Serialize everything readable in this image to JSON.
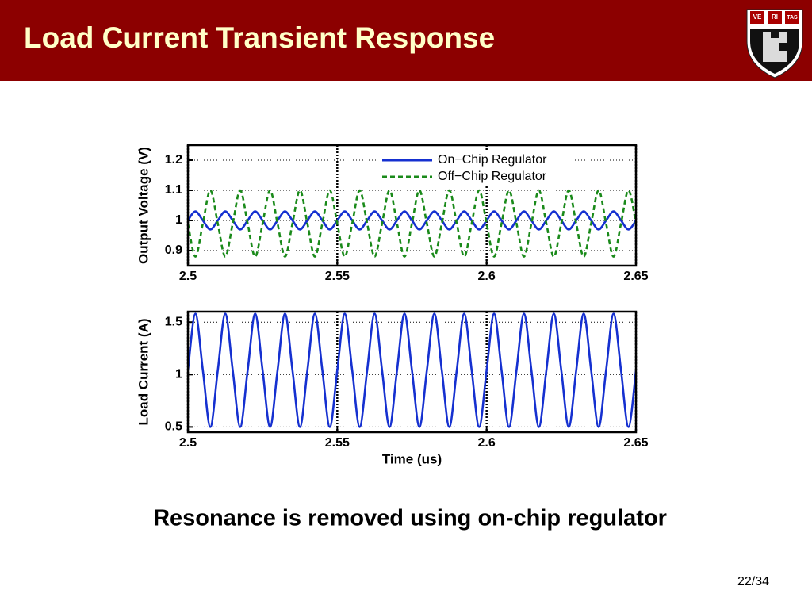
{
  "header": {
    "title": "Load Current Transient Response",
    "logo": [
      "VE",
      "RI",
      "TAS"
    ]
  },
  "chart_data": [
    {
      "type": "line",
      "x": [
        2.5,
        2.5025,
        2.505,
        2.5075,
        2.51,
        2.5125,
        2.515,
        2.5175,
        2.52,
        2.5225,
        2.525,
        2.5275,
        2.53,
        2.5325,
        2.535,
        2.5375,
        2.54,
        2.5425,
        2.545,
        2.5475,
        2.55,
        2.5525,
        2.555,
        2.5575,
        2.56,
        2.5625,
        2.565,
        2.5675,
        2.57,
        2.5725,
        2.575,
        2.5775,
        2.58,
        2.5825,
        2.585,
        2.5875,
        2.59,
        2.5925,
        2.595,
        2.5975,
        2.6,
        2.6025,
        2.605,
        2.6075,
        2.61,
        2.6125,
        2.615,
        2.6175,
        2.62,
        2.6225,
        2.625,
        2.6275,
        2.63,
        2.6325,
        2.635,
        2.6375,
        2.64,
        2.6425,
        2.645,
        2.6475,
        2.65
      ],
      "series": [
        {
          "name": "On−Chip Regulator",
          "color": "#1530d0",
          "linestyle": "solid",
          "values": [
            1,
            1.03,
            1,
            0.97,
            1,
            1.03,
            1,
            0.97,
            1,
            1.03,
            1,
            0.97,
            1,
            1.03,
            1,
            0.97,
            1,
            1.03,
            1,
            0.97,
            1,
            1.03,
            1,
            0.97,
            1,
            1.03,
            1,
            0.97,
            1,
            1.03,
            1,
            0.97,
            1,
            1.03,
            1,
            0.97,
            1,
            1.03,
            1,
            0.97,
            1,
            1.03,
            1,
            0.97,
            1,
            1.03,
            1,
            0.97,
            1,
            1.03,
            1,
            0.97,
            1,
            1.03,
            1,
            0.97,
            1,
            1.03,
            1,
            0.97,
            1
          ]
        },
        {
          "name": "Off−Chip Regulator",
          "color": "#1a8a1a",
          "linestyle": "dashed",
          "values": [
            0.99,
            0.88,
            0.99,
            1.1,
            0.99,
            0.88,
            0.99,
            1.1,
            0.99,
            0.88,
            0.99,
            1.1,
            0.99,
            0.88,
            0.99,
            1.1,
            0.99,
            0.88,
            0.99,
            1.1,
            0.99,
            0.88,
            0.99,
            1.1,
            0.99,
            0.88,
            0.99,
            1.1,
            0.99,
            0.88,
            0.99,
            1.1,
            0.99,
            0.88,
            0.99,
            1.1,
            0.99,
            0.88,
            0.99,
            1.1,
            0.99,
            0.88,
            0.99,
            1.1,
            0.99,
            0.88,
            0.99,
            1.1,
            0.99,
            0.88,
            0.99,
            1.1,
            0.99,
            0.88,
            0.99,
            1.1,
            0.99,
            0.88,
            0.99,
            1.1,
            0.99
          ]
        }
      ],
      "ylabel": "Output Voltage (V)",
      "xlim": [
        2.5,
        2.65
      ],
      "ylim": [
        0.85,
        1.25
      ],
      "xticks": [
        2.5,
        2.55,
        2.6,
        2.65
      ],
      "yticks": [
        0.9,
        1,
        1.1,
        1.2
      ],
      "grid": true,
      "legend": "upper right"
    },
    {
      "type": "line",
      "x": [
        2.5,
        2.5025,
        2.505,
        2.5075,
        2.51,
        2.5125,
        2.515,
        2.5175,
        2.52,
        2.5225,
        2.525,
        2.5275,
        2.53,
        2.5325,
        2.535,
        2.5375,
        2.54,
        2.5425,
        2.545,
        2.5475,
        2.55,
        2.5525,
        2.555,
        2.5575,
        2.56,
        2.5625,
        2.565,
        2.5675,
        2.57,
        2.5725,
        2.575,
        2.5775,
        2.58,
        2.5825,
        2.585,
        2.5875,
        2.59,
        2.5925,
        2.595,
        2.5975,
        2.6,
        2.6025,
        2.605,
        2.6075,
        2.61,
        2.6125,
        2.615,
        2.6175,
        2.62,
        2.6225,
        2.625,
        2.6275,
        2.63,
        2.6325,
        2.635,
        2.6375,
        2.64,
        2.6425,
        2.645,
        2.6475,
        2.65
      ],
      "series": [
        {
          "color": "#1530d0",
          "linestyle": "solid",
          "values": [
            1.04,
            1.58,
            1.04,
            0.5,
            1.04,
            1.58,
            1.04,
            0.5,
            1.04,
            1.58,
            1.04,
            0.5,
            1.04,
            1.58,
            1.04,
            0.5,
            1.04,
            1.58,
            1.04,
            0.5,
            1.04,
            1.58,
            1.04,
            0.5,
            1.04,
            1.58,
            1.04,
            0.5,
            1.04,
            1.58,
            1.04,
            0.5,
            1.04,
            1.58,
            1.04,
            0.5,
            1.04,
            1.58,
            1.04,
            0.5,
            1.04,
            1.58,
            1.04,
            0.5,
            1.04,
            1.58,
            1.04,
            0.5,
            1.04,
            1.58,
            1.04,
            0.5,
            1.04,
            1.58,
            1.04,
            0.5,
            1.04,
            1.58,
            1.04,
            0.5,
            1.04
          ]
        }
      ],
      "ylabel": "Load Current (A)",
      "xlabel": "Time (us)",
      "xlim": [
        2.5,
        2.65
      ],
      "ylim": [
        0.45,
        1.6
      ],
      "xticks": [
        2.5,
        2.55,
        2.6,
        2.65
      ],
      "yticks": [
        0.5,
        1,
        1.5
      ],
      "grid": true
    }
  ],
  "caption": "Resonance is removed using on-chip regulator",
  "page_number": "22/34"
}
